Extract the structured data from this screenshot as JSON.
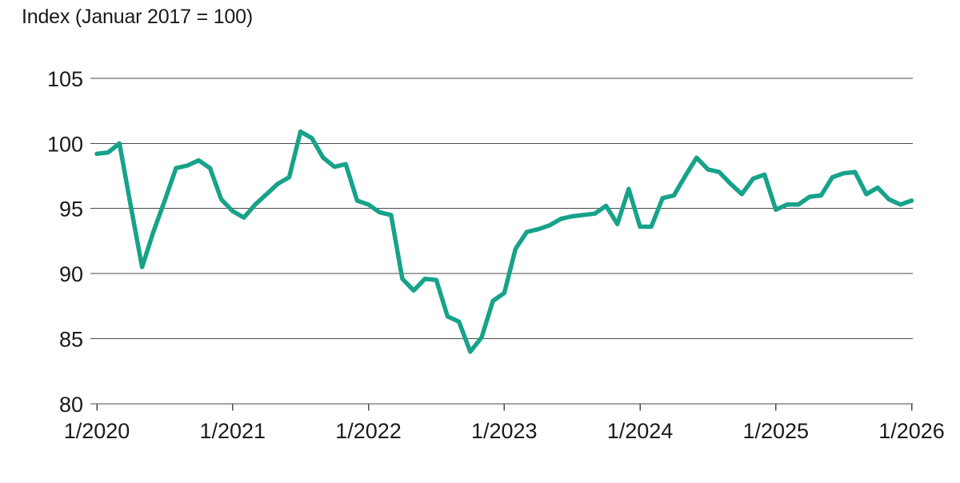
{
  "title": "Index (Januar 2017 = 100)",
  "colors": {
    "line": "#17a28a",
    "grid": "#4a4a4a",
    "axis": "#4a4a4a",
    "text": "#1a1a1a",
    "background": "#ffffff"
  },
  "chart_data": {
    "type": "line",
    "title": "Index (Januar 2017 = 100)",
    "xlabel": "",
    "ylabel": "Index (Januar 2017 = 100)",
    "x_unit": "month",
    "x_start": "1/2020",
    "x_end": "1/2026",
    "x_tick_labels": [
      "1/2020",
      "1/2021",
      "1/2022",
      "1/2023",
      "1/2024",
      "1/2025",
      "1/2026"
    ],
    "y_ticks": [
      105,
      100,
      95,
      90,
      85,
      80
    ],
    "y_tick_labels": [
      "105",
      "100",
      "95",
      "90",
      "85",
      "80"
    ],
    "ylim": [
      80,
      105
    ],
    "grid": true,
    "legend_position": "none",
    "series": [
      {
        "name": "Index (Januar 2017 = 100)",
        "color": "#17a28a",
        "points_per_year": 12,
        "values": [
          99.2,
          99.3,
          100.0,
          95.2,
          90.5,
          93.2,
          95.6,
          98.1,
          98.3,
          98.7,
          98.1,
          95.7,
          94.8,
          94.3,
          95.3,
          96.1,
          96.9,
          97.4,
          100.9,
          100.4,
          98.9,
          98.2,
          98.4,
          95.6,
          95.3,
          94.7,
          94.5,
          89.6,
          88.7,
          89.6,
          89.5,
          86.7,
          86.3,
          84.0,
          85.1,
          87.9,
          88.5,
          91.9,
          93.2,
          93.4,
          93.7,
          94.2,
          94.4,
          94.5,
          94.6,
          95.2,
          93.8,
          96.5,
          93.6,
          93.6,
          95.8,
          96.0,
          97.5,
          98.9,
          98.0,
          97.8,
          96.9,
          96.1,
          97.3,
          97.6,
          94.9,
          95.3,
          95.3,
          95.9,
          96.0,
          97.4,
          97.7,
          97.8,
          96.1,
          96.6,
          95.7,
          95.3,
          95.6
        ]
      }
    ]
  }
}
